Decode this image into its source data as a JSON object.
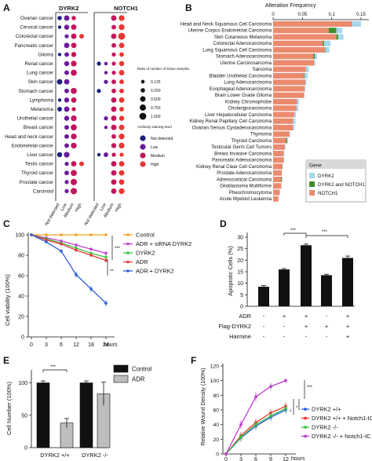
{
  "panels": {
    "A": {
      "label": "A",
      "genes": [
        "DYRK2",
        "NOTCH1"
      ],
      "cancers": [
        "Ovarian cancer",
        "Cervical cancer",
        "Colorectal cancer",
        "Pancreatic cancer",
        "Glioma",
        "Renal cancer",
        "Lung cancer",
        "Skin cancer",
        "Stomach cancer",
        "Lymphoma",
        "Melanoma",
        "Urothelial cancer",
        "Breast cancer",
        "Head and neck cancer",
        "Endometrial cancer",
        "Liver cancer",
        "Testis cancer",
        "Thyroid cancer",
        "Prostate cancer",
        "Carcinoid"
      ],
      "levels": [
        "Not detected",
        "Low",
        "Medium",
        "High"
      ],
      "size_legend_title": "Ratio of number of tissue samples",
      "size_legend_values": [
        "0.125",
        "0.250",
        "0.500",
        "0.750",
        "1.000"
      ],
      "color_legend_title": "Antibody staining level",
      "color_legend": [
        {
          "label": "Not detected",
          "color": "#1a237e"
        },
        {
          "label": "Low",
          "color": "#6a1b9a"
        },
        {
          "label": "Medium",
          "color": "#c2185b"
        },
        {
          "label": "High",
          "color": "#e53935"
        }
      ],
      "dyrk2_values": [
        [
          0.25,
          0.5,
          0.25,
          0
        ],
        [
          0.1,
          0.4,
          0.5,
          0
        ],
        [
          0,
          0.2,
          0.5,
          0.3
        ],
        [
          0,
          0.5,
          0.5,
          0
        ],
        [
          0.1,
          0.3,
          0.4,
          0
        ],
        [
          0,
          0.4,
          0.6,
          0
        ],
        [
          0,
          0.3,
          0.7,
          0
        ],
        [
          0.5,
          0.5,
          0,
          0
        ],
        [
          0,
          0.3,
          0.7,
          0
        ],
        [
          0.1,
          0.4,
          0.5,
          0
        ],
        [
          0.3,
          0.5,
          0.2,
          0
        ],
        [
          0,
          0.4,
          0.6,
          0
        ],
        [
          0,
          0.3,
          0.7,
          0
        ],
        [
          0,
          0.3,
          0.6,
          0
        ],
        [
          0,
          0.3,
          0.6,
          0
        ],
        [
          0.4,
          0.6,
          0,
          0
        ],
        [
          0,
          0.2,
          0.5,
          0.3
        ],
        [
          0,
          0.3,
          0.7,
          0
        ],
        [
          0,
          0.2,
          0.8,
          0
        ],
        [
          0,
          0.2,
          0.8,
          0
        ]
      ],
      "notch1_values": [
        [
          0,
          0,
          0.5,
          0.6
        ],
        [
          0,
          0,
          0.3,
          0.6
        ],
        [
          0,
          0,
          0.5,
          1.0
        ],
        [
          0,
          0,
          0.3,
          0.5
        ],
        [
          0,
          0,
          0.2,
          0.3
        ],
        [
          0.2,
          0.1,
          0.2,
          0.4
        ],
        [
          0,
          0.1,
          0.2,
          0.5
        ],
        [
          0,
          0.2,
          0.3,
          0.3
        ],
        [
          0.2,
          0,
          0.3,
          0.3
        ],
        [
          0,
          0,
          0.5,
          0.5
        ],
        [
          0,
          0,
          0.5,
          0.3
        ],
        [
          0,
          0.2,
          0.5,
          0.4
        ],
        [
          0,
          0.1,
          0.5,
          0.5
        ],
        [
          0,
          0,
          0.3,
          0.6
        ],
        [
          0,
          0,
          0.4,
          0.6
        ],
        [
          0.1,
          0.3,
          0.2,
          0.2
        ],
        [
          0,
          0,
          0.5,
          0.5
        ],
        [
          0,
          0,
          0.5,
          0.5
        ],
        [
          0,
          0,
          0.5,
          0.5
        ],
        [
          0,
          0,
          0.5,
          0.6
        ]
      ]
    },
    "B": {
      "label": "B",
      "title": "Alteration Frequency",
      "ticks": [
        "0",
        "0.05",
        "0.1",
        "0.15"
      ],
      "cancers": [
        "Head and Neck Squamous Cell Carcinoma",
        "Uterine Corpus Endometrial Carcinoma",
        "Skin Cutaneous Melanoma",
        "Colorectal Adenocarcinoma",
        "Lung Squamous Cell Carcinoma",
        "Stomach Adenocarcinoma",
        "Uterine Carcinosarcoma",
        "Sarcoma",
        "Bladder Urothelial Carcinoma",
        "Lung Adenocarcinoma",
        "Esophageal Adenocarcinoma",
        "Brain Lower Grade Glioma",
        "Kidney Chromophobe",
        "Cholangiocarcinoma",
        "Liver Hepatocellular Carcinoma",
        "Kidney Renal Papillary Cell Carcinoma",
        "Ovarian Serous Cystadenocarcinoma",
        "Thymoma",
        "Thyroid Carcinoma",
        "Testicular Germ Cell Tumors",
        "Breast Invasive Carcinoma",
        "Pancreatic Adenocarcinoma",
        "Kidney Renal Clear Cell Carcinoma",
        "Prostate Adenocarcinoma",
        "Adrenocortical Carcinoma",
        "Glioblastoma Multiforme",
        "Pheochromocytoma",
        "Acute Myeloid Leukemia"
      ],
      "legend_title": "Gene",
      "legend": [
        {
          "label": "DYRK2",
          "color": "#a6d8ee"
        },
        {
          "label": "DYRK2 and NOTCH1",
          "color": "#3f8f2a"
        },
        {
          "label": "NOTCH1",
          "color": "#ec8a6e"
        }
      ]
    },
    "C": {
      "label": "C",
      "ylabel": "Cell viability (100%)",
      "xlabel": "hours",
      "x_ticks": [
        "0",
        "3",
        "6",
        "12",
        "18",
        "24"
      ],
      "y_ticks": [
        "0",
        "20",
        "40",
        "60",
        "80",
        "100"
      ],
      "significance": [
        "***",
        "**"
      ],
      "legend": [
        {
          "label": "Control",
          "color": "#f4a11d"
        },
        {
          "label": "ADR + siRNA DYRK2",
          "color": "#c040d0"
        },
        {
          "label": "DYRK2",
          "color": "#3cbf4a"
        },
        {
          "label": "ADR",
          "color": "#e53935"
        },
        {
          "label": "ADR + DYRK2",
          "color": "#2d5fd6"
        }
      ]
    },
    "D": {
      "label": "D",
      "ylabel": "Apoptotic Cells (%)",
      "y_ticks": [
        "0",
        "5",
        "10",
        "15",
        "20",
        "25",
        "30"
      ],
      "row_labels": [
        "ADR",
        "Flag-DYRK2",
        "Harmine"
      ],
      "row_marks": [
        [
          "-",
          "+",
          "+",
          "-",
          "+"
        ],
        [
          "-",
          "-",
          "+",
          "+",
          "+"
        ],
        [
          "-",
          "-",
          "-",
          "-",
          "+"
        ]
      ],
      "significance": [
        "***",
        "***"
      ]
    },
    "E": {
      "label": "E",
      "ylabel": "Cell Number (100%)",
      "y_ticks": [
        "0",
        "50",
        "100"
      ],
      "group_labels": [
        "DYRK2 +/+",
        "DYRK2 -/-"
      ],
      "legend": [
        {
          "label": "Control",
          "color": "#111111"
        },
        {
          "label": "ADR",
          "color": "#bdbdbd"
        }
      ],
      "significance": [
        "***"
      ]
    },
    "F": {
      "label": "F",
      "ylabel": "Relative Wound Density (100%)",
      "xlabel": "hours",
      "x_ticks": [
        "0",
        "3",
        "6",
        "9",
        "12"
      ],
      "y_ticks": [
        "0",
        "20",
        "40",
        "60",
        "80",
        "100",
        "120"
      ],
      "significance": [
        "*",
        "*",
        "***"
      ],
      "legend": [
        {
          "label": "DYRK2 +/+",
          "color": "#2d5fd6"
        },
        {
          "label": "DYRK2 +/+ + Notch1-IC",
          "color": "#e53935"
        },
        {
          "label": "DYRK2 -/-",
          "color": "#3cbf4a"
        },
        {
          "label": "DYRK2 -/- + Notch1-IC",
          "color": "#c040d0"
        }
      ]
    }
  },
  "chart_data": [
    {
      "type": "scatter",
      "panel": "A",
      "description_free": true,
      "x": [
        "Not detected",
        "Low",
        "Medium",
        "High"
      ],
      "groups": [
        "DYRK2",
        "NOTCH1"
      ],
      "size_legend": [
        0.125,
        0.25,
        0.5,
        0.75,
        1.0
      ]
    },
    {
      "type": "bar",
      "panel": "B",
      "title": "Alteration Frequency",
      "xlim": [
        0,
        0.15
      ],
      "categories": [
        "Head and Neck Squamous Cell Carcinoma",
        "Uterine Corpus Endometrial Carcinoma",
        "Skin Cutaneous Melanoma",
        "Colorectal Adenocarcinoma",
        "Lung Squamous Cell Carcinoma",
        "Stomach Adenocarcinoma",
        "Uterine Carcinosarcoma",
        "Sarcoma",
        "Bladder Urothelial Carcinoma",
        "Lung Adenocarcinoma",
        "Esophageal Adenocarcinoma",
        "Brain Lower Grade Glioma",
        "Kidney Chromophobe",
        "Cholangiocarcinoma",
        "Liver Hepatocellular Carcinoma",
        "Kidney Renal Papillary Cell Carcinoma",
        "Ovarian Serous Cystadenocarcinoma",
        "Thymoma",
        "Thyroid Carcinoma",
        "Testicular Germ Cell Tumors",
        "Breast Invasive Carcinoma",
        "Pancreatic Adenocarcinoma",
        "Kidney Renal Clear Cell Carcinoma",
        "Prostate Adenocarcinoma",
        "Adrenocortical Carcinoma",
        "Glioblastoma Multiforme",
        "Pheochromocytoma",
        "Acute Myeloid Leukemia"
      ],
      "series": [
        {
          "name": "NOTCH1",
          "values": [
            0.135,
            0.095,
            0.108,
            0.085,
            0.088,
            0.069,
            0.07,
            0.056,
            0.053,
            0.055,
            0.054,
            0.053,
            0.041,
            0.04,
            0.036,
            0.034,
            0.034,
            0.028,
            0.022,
            0.02,
            0.018,
            0.018,
            0.016,
            0.015,
            0.014,
            0.014,
            0.011,
            0.009
          ]
        },
        {
          "name": "DYRK2 and NOTCH1",
          "values": [
            0,
            0.013,
            0.003,
            0.002,
            0.001,
            0.002,
            0,
            0,
            0.001,
            0,
            0,
            0,
            0,
            0,
            0,
            0,
            0,
            0,
            0.002,
            0,
            0,
            0,
            0,
            0,
            0.001,
            0,
            0,
            0
          ]
        },
        {
          "name": "DYRK2",
          "values": [
            0.015,
            0.01,
            0.009,
            0.011,
            0.007,
            0.004,
            0.002,
            0.005,
            0.005,
            0.002,
            0.001,
            0,
            0.003,
            0.003,
            0.003,
            0.004,
            0.002,
            0.001,
            0.001,
            0.001,
            0.001,
            0.001,
            0.001,
            0,
            0.001,
            0,
            0.001,
            0
          ]
        }
      ]
    },
    {
      "type": "line",
      "panel": "C",
      "x": [
        "0",
        "3",
        "6",
        "12",
        "18",
        "24"
      ],
      "ylabel": "Cell viability (100%)",
      "xlabel": "hours",
      "ylim": [
        0,
        100
      ],
      "series": [
        {
          "name": "Control",
          "values": [
            100,
            100,
            100,
            100,
            100,
            100
          ],
          "errors": [
            1,
            1,
            1,
            1,
            1,
            1
          ]
        },
        {
          "name": "ADR + siRNA DYRK2",
          "values": [
            100,
            97,
            94,
            90,
            86,
            82
          ],
          "errors": [
            1,
            1,
            1,
            1.5,
            1.5,
            2
          ]
        },
        {
          "name": "DYRK2",
          "values": [
            100,
            96,
            92,
            87,
            82,
            78
          ],
          "errors": [
            1,
            1,
            1,
            1.5,
            1.5,
            2
          ]
        },
        {
          "name": "ADR",
          "values": [
            100,
            95,
            91,
            85,
            80,
            75
          ],
          "errors": [
            1,
            1,
            1,
            1.5,
            1.5,
            2
          ]
        },
        {
          "name": "ADR + DYRK2",
          "values": [
            100,
            93,
            84,
            61,
            47,
            33
          ],
          "errors": [
            1,
            1.5,
            2,
            3,
            3,
            3
          ]
        }
      ]
    },
    {
      "type": "bar",
      "panel": "D",
      "ylabel": "Apoptotic Cells (%)",
      "ylim": [
        0,
        30
      ],
      "values": [
        8.5,
        16,
        26.5,
        13.5,
        21
      ],
      "errors": [
        0.5,
        0.4,
        0.5,
        0.4,
        0.8
      ]
    },
    {
      "type": "bar",
      "panel": "E",
      "ylabel": "Cell Number (100%)",
      "ylim": [
        0,
        120
      ],
      "categories": [
        "DYRK2 +/+",
        "DYRK2 -/-"
      ],
      "series": [
        {
          "name": "Control",
          "values": [
            100,
            100
          ],
          "errors": [
            3,
            3
          ]
        },
        {
          "name": "ADR",
          "values": [
            38,
            83
          ],
          "errors": [
            7,
            18
          ]
        }
      ]
    },
    {
      "type": "line",
      "panel": "F",
      "x": [
        "0",
        "3",
        "6",
        "9",
        "12"
      ],
      "ylabel": "Relative Wound Density (100%)",
      "xlabel": "hours",
      "ylim": [
        0,
        120
      ],
      "series": [
        {
          "name": "DYRK2 +/+",
          "values": [
            0,
            22,
            38,
            50,
            60
          ],
          "errors": [
            1,
            5,
            5,
            5,
            5
          ]
        },
        {
          "name": "DYRK2 +/+ + Notch1-IC",
          "values": [
            0,
            25,
            43,
            56,
            65
          ],
          "errors": [
            1,
            5,
            5,
            5,
            5
          ]
        },
        {
          "name": "DYRK2 -/-",
          "values": [
            0,
            23,
            40,
            52,
            62
          ],
          "errors": [
            1,
            5,
            5,
            5,
            5
          ]
        },
        {
          "name": "DYRK2 -/- + Notch1-IC",
          "values": [
            0,
            40,
            78,
            92,
            100
          ],
          "errors": [
            1,
            6,
            6,
            5,
            3
          ]
        }
      ]
    }
  ]
}
